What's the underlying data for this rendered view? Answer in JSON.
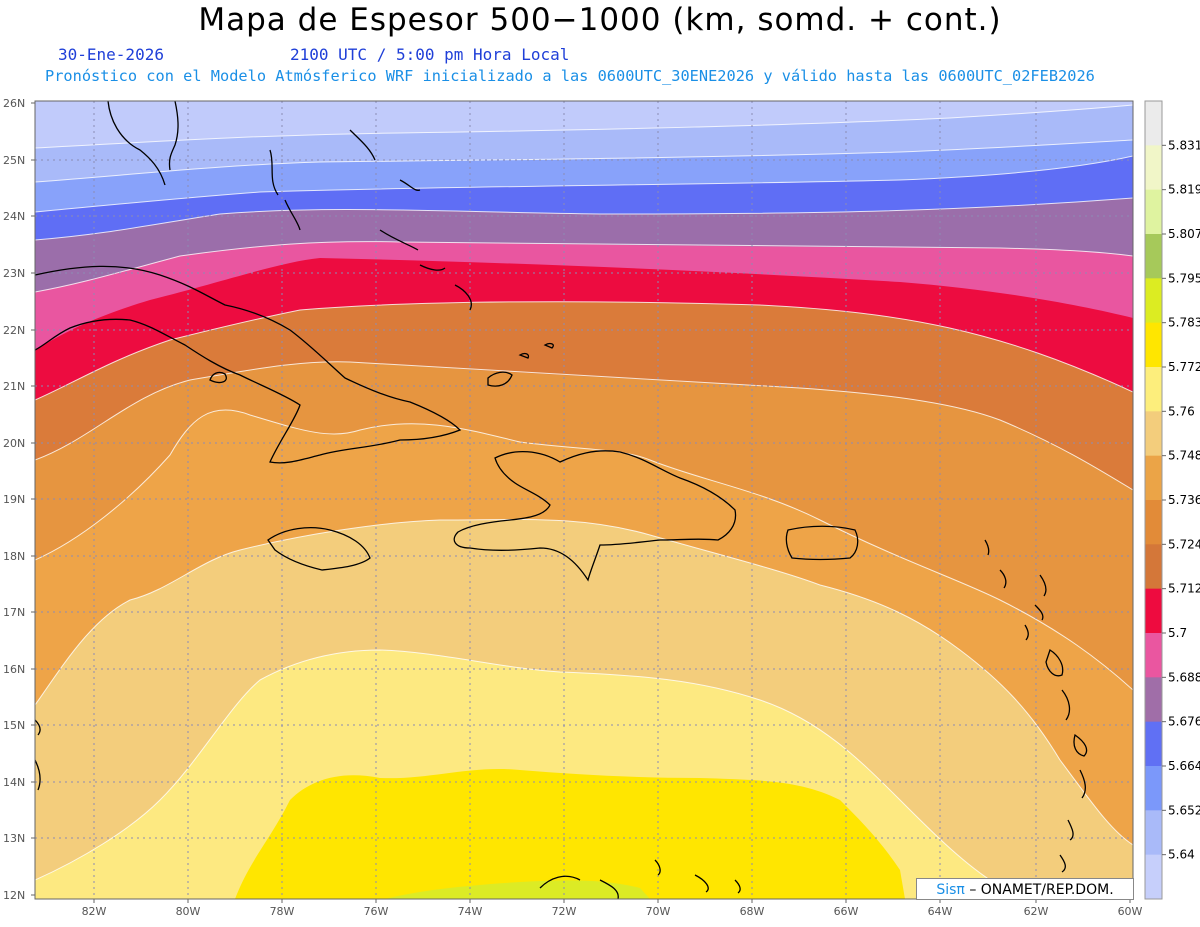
{
  "header": {
    "title": "Mapa de Espesor 500−1000 (km, somd. + cont.)",
    "date": "30-Ene-2026",
    "time": "2100 UTC / 5:00 pm Hora Local",
    "model_line": "Pronóstico con el Modelo Atmósferico WRF inicializado a las 0600UTC_30ENE2026 y válido hasta las  0600UTC_02FEB2026"
  },
  "credit": {
    "brand": "Sisπ",
    "org": "– ONAMET/REP.DOM."
  },
  "axes": {
    "lat_labels": [
      "26N",
      "25N",
      "24N",
      "23N",
      "22N",
      "21N",
      "20N",
      "19N",
      "18N",
      "17N",
      "16N",
      "15N",
      "14N",
      "13N",
      "12N"
    ],
    "lon_labels": [
      "82W",
      "80W",
      "78W",
      "76W",
      "74W",
      "72W",
      "70W",
      "68W",
      "66W",
      "64W",
      "62W",
      "60W"
    ]
  },
  "colorbar": {
    "levels": [
      "5.831",
      "5.819",
      "5.807",
      "5.795",
      "5.783",
      "5.772",
      "5.76",
      "5.748",
      "5.736",
      "5.724",
      "5.712",
      "5.7",
      "5.688",
      "5.676",
      "5.664",
      "5.652",
      "5.64"
    ],
    "colors": [
      "#ebebeb",
      "#f1f6c8",
      "#dff3a0",
      "#a6c95a",
      "#dcec22",
      "#ffe600",
      "#fdee7c",
      "#f3cd7c",
      "#eba447",
      "#e28b38",
      "#d47739",
      "#ee0b3f",
      "#ea56a0",
      "#a06ea8",
      "#6070f4",
      "#7b98fa",
      "#a9baf9",
      "#c6cffb"
    ]
  },
  "bands_colors": {
    "b0": "#c1cbfb",
    "b1": "#a9baf9",
    "b2": "#88a2fa",
    "b3": "#5f6ef5",
    "b4": "#9b6eaa",
    "b5": "#e956a0",
    "b6": "#ed0c40",
    "b7": "#da7b3a",
    "b8": "#e69540",
    "b9": "#eea448",
    "b10": "#f3cd7c",
    "b11": "#fde981",
    "b12": "#ffe600",
    "b13": "#dceb25"
  }
}
